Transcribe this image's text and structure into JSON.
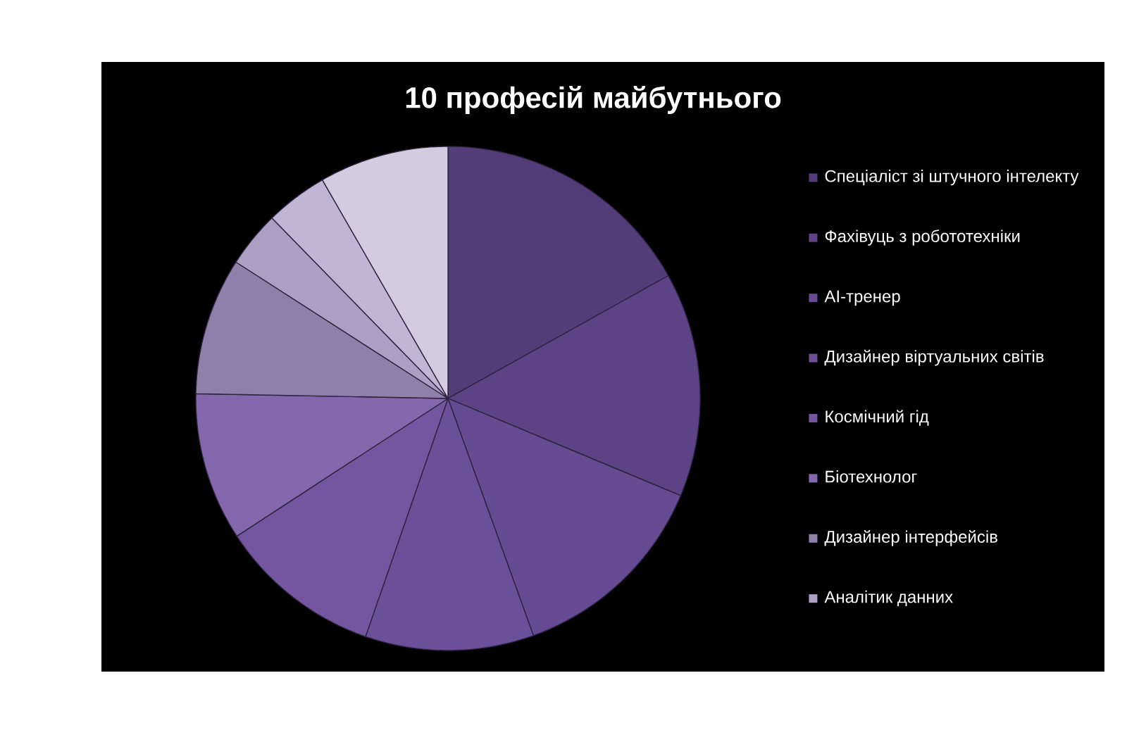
{
  "chart_data": {
    "type": "pie",
    "title": "10 професій майбутнього",
    "categories": [
      "Спеціаліст зі штучного інтелекту",
      "Фахівуць з робототехніки",
      "AI-тренер",
      "Дизайнер віртуальних світів",
      "Космічний гід",
      "Біотехнолог",
      "Дизайнер інтерфейсів",
      "Аналітик данних",
      null,
      null
    ],
    "values": [
      16.9,
      14.4,
      13.2,
      10.8,
      10.5,
      9.5,
      8.8,
      3.6,
      4.0,
      8.3
    ],
    "colors": [
      "#543c78",
      "#5d4386",
      "#664a92",
      "#6c4f99",
      "#74559f",
      "#8467ad",
      "#8e80aa",
      "#ad9fc4",
      "#c0b5d3",
      "#d3cbe0"
    ],
    "legend": "right"
  }
}
